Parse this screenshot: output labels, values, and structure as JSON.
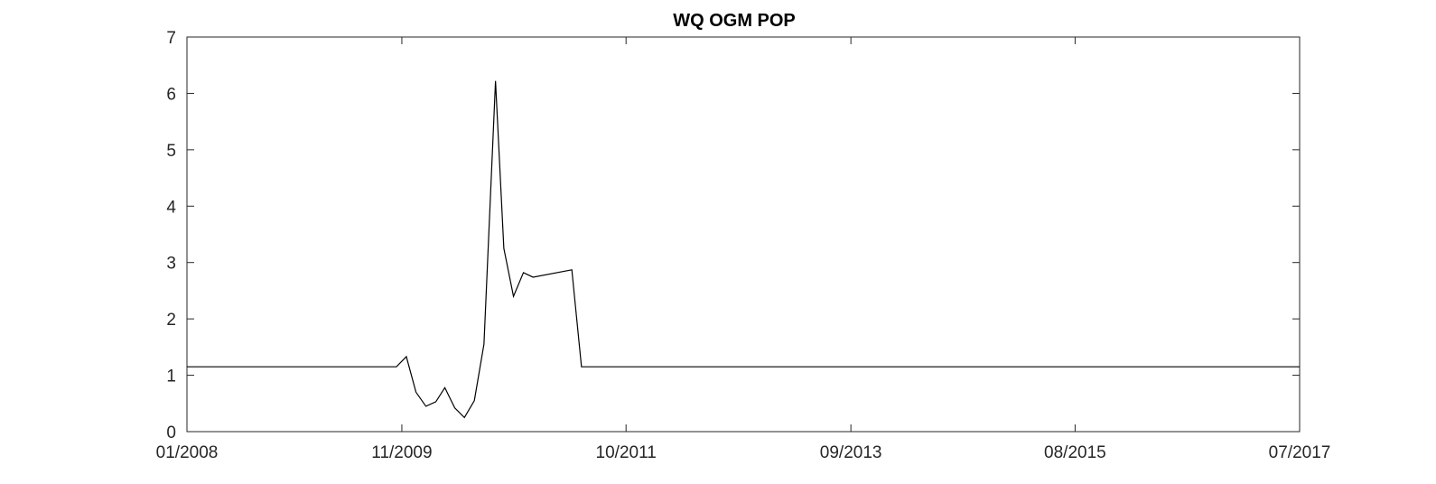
{
  "chart_data": {
    "type": "line",
    "title": "WQ OGM POP",
    "xlabel": "",
    "ylabel": "",
    "xlim": [
      "2008-01-01",
      "2017-07-01"
    ],
    "ylim": [
      0,
      7
    ],
    "grid": false,
    "x_ticks": [
      "01/2008",
      "11/2009",
      "10/2011",
      "09/2013",
      "08/2015",
      "07/2017"
    ],
    "x_tick_dates": [
      "2008-01-01",
      "2009-11-01",
      "2011-10-01",
      "2013-09-01",
      "2015-08-01",
      "2017-07-01"
    ],
    "y_ticks": [
      0,
      1,
      2,
      3,
      4,
      5,
      6,
      7
    ],
    "series": [
      {
        "name": "WQ OGM POP",
        "color": "#000000",
        "x": [
          "2008-01-01",
          "2009-10-15",
          "2009-11-15",
          "2009-12-15",
          "2010-01-15",
          "2010-02-15",
          "2010-03-15",
          "2010-04-15",
          "2010-05-15",
          "2010-06-15",
          "2010-07-15",
          "2010-08-20",
          "2010-09-15",
          "2010-10-15",
          "2010-11-15",
          "2010-12-15",
          "2011-04-15",
          "2011-05-15",
          "2017-07-01"
        ],
        "y": [
          1.15,
          1.15,
          1.33,
          0.7,
          0.45,
          0.53,
          0.78,
          0.42,
          0.25,
          0.55,
          1.55,
          6.22,
          3.25,
          2.4,
          2.82,
          2.74,
          2.87,
          1.15,
          1.15
        ]
      }
    ]
  }
}
